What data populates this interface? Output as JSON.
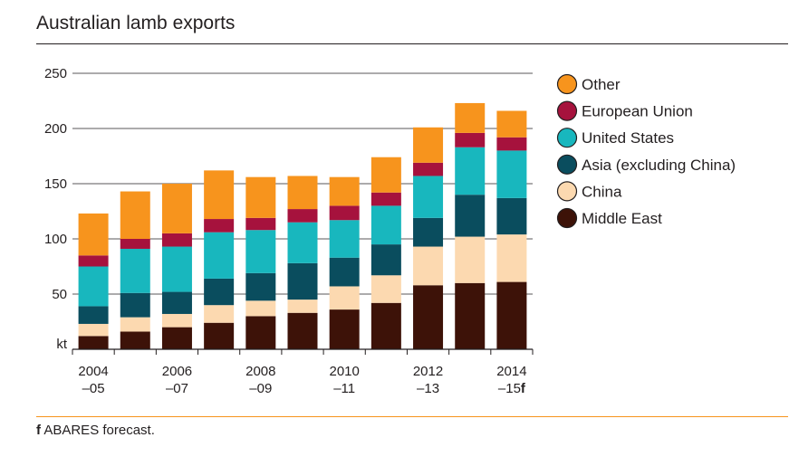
{
  "title": "Australian lamb exports",
  "footnote": {
    "marker": "f",
    "text": " ABARES forecast."
  },
  "colors": {
    "Middle East": "#3d1208",
    "China": "#fcd9b0",
    "Asia (excluding China)": "#0a4d5e",
    "United States": "#18b7be",
    "European Union": "#a6123d",
    "Other": "#f7941d"
  },
  "chart_data": {
    "type": "bar",
    "stacked": true,
    "unit_label": "kt",
    "ylim": [
      0,
      250
    ],
    "yticks": [
      "50",
      "100",
      "150",
      "200",
      "250"
    ],
    "categories": [
      "2004-05",
      "2005-06",
      "2006-07",
      "2007-08",
      "2008-09",
      "2009-10",
      "2010-11",
      "2011-12",
      "2012-13",
      "2013-14",
      "2014-15f"
    ],
    "xtick_labels": [
      {
        "index": 0,
        "line1": "2004",
        "line2": "–05",
        "forecast": ""
      },
      {
        "index": 2,
        "line1": "2006",
        "line2": "–07",
        "forecast": ""
      },
      {
        "index": 4,
        "line1": "2008",
        "line2": "–09",
        "forecast": ""
      },
      {
        "index": 6,
        "line1": "2010",
        "line2": "–11",
        "forecast": ""
      },
      {
        "index": 8,
        "line1": "2012",
        "line2": "–13",
        "forecast": ""
      },
      {
        "index": 10,
        "line1": "2014",
        "line2": "–15",
        "forecast": "f"
      }
    ],
    "series": [
      {
        "name": "Middle East",
        "values": [
          12,
          16,
          20,
          24,
          30,
          33,
          36,
          42,
          58,
          60,
          61
        ]
      },
      {
        "name": "China",
        "values": [
          11,
          13,
          12,
          16,
          14,
          12,
          21,
          25,
          35,
          42,
          43
        ]
      },
      {
        "name": "Asia (excluding China)",
        "values": [
          16,
          22,
          20,
          24,
          25,
          33,
          26,
          28,
          26,
          38,
          33
        ]
      },
      {
        "name": "United States",
        "values": [
          36,
          40,
          41,
          42,
          39,
          37,
          34,
          35,
          38,
          43,
          43
        ]
      },
      {
        "name": "European Union",
        "values": [
          10,
          9,
          12,
          12,
          11,
          12,
          13,
          12,
          12,
          13,
          12
        ]
      },
      {
        "name": "Other",
        "values": [
          38,
          43,
          45,
          44,
          37,
          30,
          26,
          32,
          32,
          27,
          24
        ]
      }
    ],
    "legend_order": [
      "Other",
      "European Union",
      "United States",
      "Asia (excluding China)",
      "China",
      "Middle East"
    ],
    "legend_position": "right",
    "grid": true
  }
}
